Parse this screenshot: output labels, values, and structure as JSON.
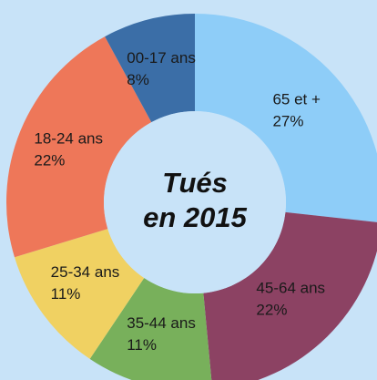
{
  "chart_data": {
    "type": "donut",
    "title": "Tués\nen 2015",
    "categories": [
      "65 et +",
      "45-64 ans",
      "35-44 ans",
      "25-34 ans",
      "18-24 ans",
      "00-17 ans"
    ],
    "values": [
      27,
      22,
      11,
      11,
      22,
      8
    ],
    "value_labels": [
      "27%",
      "22%",
      "11%",
      "11%",
      "22%",
      "8%"
    ],
    "colors": [
      "#8ecdf8",
      "#8c4263",
      "#78b05b",
      "#f0d162",
      "#ee7759",
      "#3b6ea7"
    ]
  }
}
